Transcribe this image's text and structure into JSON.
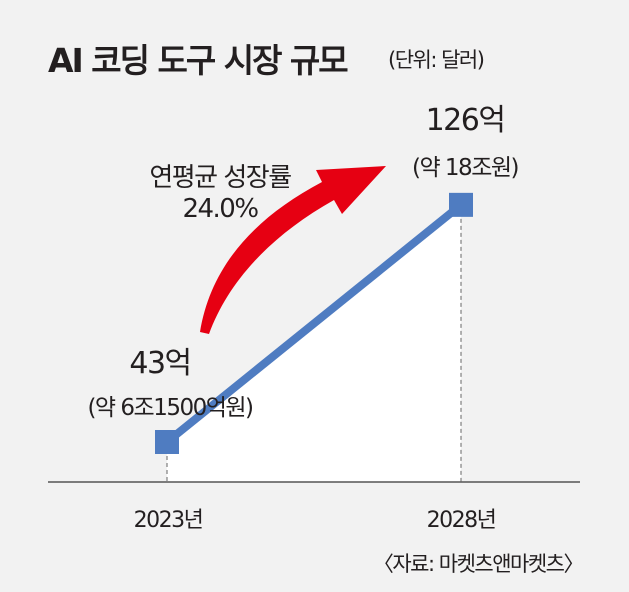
{
  "chart_data": {
    "type": "line",
    "title": "AI 코딩 도구 시장 규모",
    "unit": "(단위: 달러)",
    "categories": [
      "2023년",
      "2028년"
    ],
    "series": [
      {
        "name": "AI 코딩 도구 시장 규모",
        "values": [
          43,
          126
        ],
        "unit": "억 달러"
      }
    ],
    "data_labels": [
      {
        "value": "43억",
        "note": "(약 6조1500억원)"
      },
      {
        "value": "126억",
        "note": "(약 18조원)"
      }
    ],
    "annotation": {
      "line1": "연평균 성장률",
      "line2": "24.0%"
    },
    "ylim": [
      29,
      169
    ],
    "grid": false,
    "source": "〈자료: 마켓츠앤마켓츠〉",
    "colors": {
      "line": "#4f7cc1",
      "arrow": "#e60012",
      "fill": "#ffffff",
      "background": "#f2f2f2"
    }
  }
}
